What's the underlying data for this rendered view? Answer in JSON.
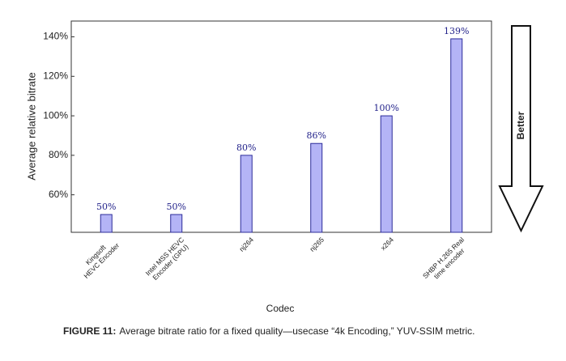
{
  "chart_data": {
    "type": "bar",
    "categories": [
      "Kingsoft\nHEVC Encoder",
      "Intel MSS HEVC\nEncoder (GPU)",
      "nj264",
      "nj265",
      "x264",
      "SHBP H.265 Real\ntime encoder"
    ],
    "values": [
      50,
      50,
      80,
      86,
      100,
      139
    ],
    "value_labels": [
      "50%",
      "50%",
      "80%",
      "86%",
      "100%",
      "139%"
    ],
    "color": "#b4b4f6",
    "ylim": [
      41,
      148
    ],
    "yticks": [
      {
        "value": 60,
        "label": "60%"
      },
      {
        "value": 80,
        "label": "80%"
      },
      {
        "value": 100,
        "label": "100%"
      },
      {
        "value": 120,
        "label": "120%"
      },
      {
        "value": 140,
        "label": "140%"
      }
    ],
    "ylabel": "Average relative bitrate",
    "xlabel": "Codec",
    "annotation": "Better"
  },
  "caption": {
    "label": "FIGURE 11:",
    "text": "Average bitrate ratio for a fixed quality—usecase “4k Encoding,” YUV-SSIM metric."
  }
}
